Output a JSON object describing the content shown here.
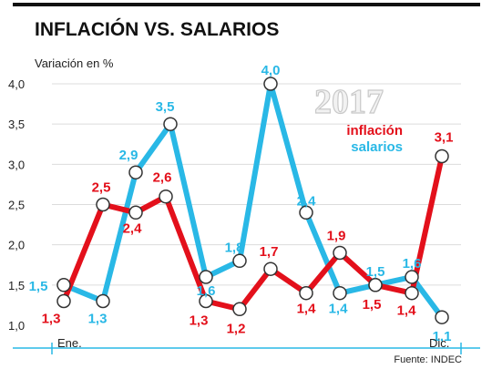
{
  "header": {
    "title": "INFLACIÓN VS. SALARIOS"
  },
  "chart_data": {
    "type": "line",
    "title": "INFLACIÓN VS. SALARIOS",
    "ylabel": "Variación en %",
    "year_label": "2017",
    "xlabel_start": "Ene.",
    "xlabel_end": "Dic.",
    "source": "Fuente: INDEC",
    "ylim": [
      1.0,
      4.0
    ],
    "yticks": [
      "1,0",
      "1,5",
      "2,0",
      "2,5",
      "3,0",
      "3,5",
      "4,0"
    ],
    "ytick_values": [
      1.0,
      1.5,
      2.0,
      2.5,
      3.0,
      3.5,
      4.0
    ],
    "legend_position": "top-right",
    "grid": true,
    "series": [
      {
        "name": "salarios",
        "color": "#29b8e6",
        "x": [
          1,
          2,
          3,
          4,
          5,
          6,
          7,
          8,
          9,
          10,
          11,
          12,
          13,
          14,
          15
        ],
        "values": [
          1.5,
          1.3,
          2.9,
          3.5,
          1.6,
          1.8,
          4.0,
          2.4,
          1.4,
          null,
          1.5,
          1.6,
          1.1,
          null,
          null
        ],
        "labels": [
          "1,5",
          "1,3",
          "2,9",
          "3,5",
          "1,6",
          "1,8",
          "4,0",
          "2,4",
          "1,4",
          "",
          "1,5",
          "1,6",
          "1,1",
          "",
          ""
        ]
      },
      {
        "name": "inflación",
        "color": "#e3101b",
        "values": [
          1.3,
          2.5,
          2.4,
          2.6,
          1.3,
          1.2,
          1.7,
          1.4,
          1.9,
          1.5,
          1.4,
          3.1
        ],
        "labels": [
          "1,3",
          "2,5",
          "2,4",
          "2,6",
          "1,3",
          "1,2",
          "1,7",
          "1,4",
          "1,9",
          "1,5",
          "1,4",
          "3,1"
        ]
      }
    ]
  }
}
